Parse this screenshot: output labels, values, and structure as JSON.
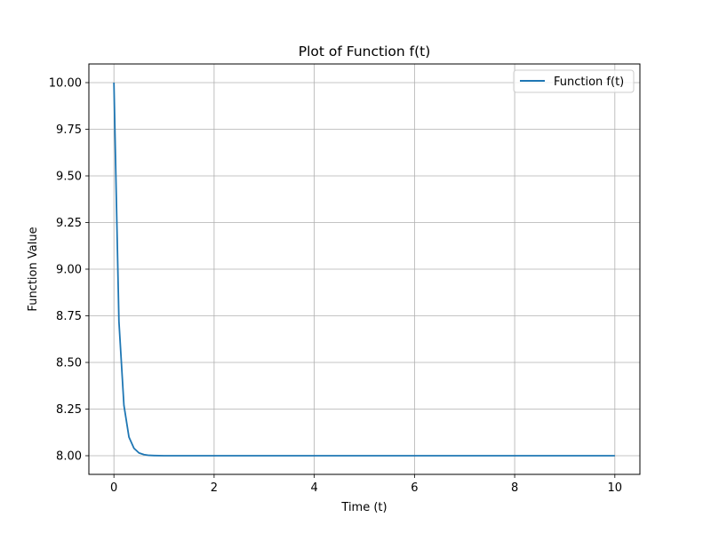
{
  "chart_data": {
    "type": "line",
    "title": "Plot of Function f(t)",
    "xlabel": "Time (t)",
    "ylabel": "Function Value",
    "xlim": [
      -0.5,
      10.5
    ],
    "ylim": [
      7.9,
      10.1
    ],
    "xticks": [
      0,
      2,
      4,
      6,
      8,
      10
    ],
    "xtick_labels": [
      "0",
      "2",
      "4",
      "6",
      "8",
      "10"
    ],
    "yticks": [
      8.0,
      8.25,
      8.5,
      8.75,
      9.0,
      9.25,
      9.5,
      9.75,
      10.0
    ],
    "ytick_labels": [
      "8.00",
      "8.25",
      "8.50",
      "8.75",
      "9.00",
      "9.25",
      "9.50",
      "9.75",
      "10.00"
    ],
    "grid": true,
    "legend_position": "top-right",
    "series": [
      {
        "name": "Function f(t)",
        "color": "#1f77b4",
        "x": [
          0,
          0.1,
          0.2,
          0.3,
          0.4,
          0.5,
          0.6,
          0.7,
          0.8,
          1.0,
          1.5,
          2,
          3,
          4,
          5,
          6,
          7,
          8,
          9,
          10
        ],
        "y": [
          10.0,
          8.72,
          8.27,
          8.1,
          8.04,
          8.015,
          8.006,
          8.002,
          8.001,
          8.0,
          8.0,
          8.0,
          8.0,
          8.0,
          8.0,
          8.0,
          8.0,
          8.0,
          8.0,
          8.0
        ]
      }
    ]
  }
}
